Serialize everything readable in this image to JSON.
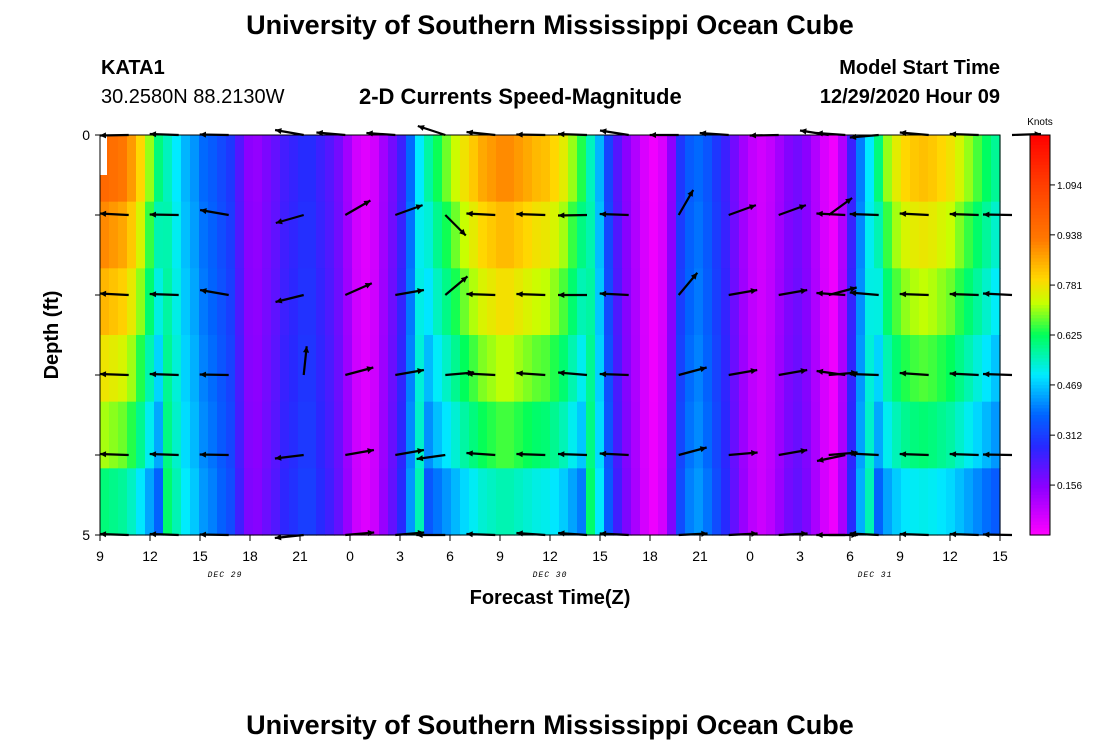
{
  "header": {
    "title_top": "University of Southern Mississippi Ocean Cube",
    "station_id": "KATA1",
    "station_coords": "30.2580N 88.2130W",
    "product_title": "2-D Currents Speed-Magnitude",
    "model_start_label": "Model Start Time",
    "model_start_value": "12/29/2020 Hour 09",
    "title_bottom": "University of Southern Mississippi Ocean Cube"
  },
  "chart_data": {
    "type": "heatmap",
    "title": "2-D Currents Speed-Magnitude",
    "xlabel": "Forecast Time(Z)",
    "ylabel": "Depth (ft)",
    "x_tick_labels": [
      "9",
      "12",
      "15",
      "18",
      "21",
      "0",
      "3",
      "6",
      "9",
      "12",
      "15",
      "18",
      "21",
      "0",
      "3",
      "6",
      "9",
      "12",
      "15"
    ],
    "x_range_hours": [
      0,
      54
    ],
    "date_labels": [
      {
        "text": "DEC 29",
        "hour": 7.5
      },
      {
        "text": "DEC 30",
        "hour": 27
      },
      {
        "text": "DEC 31",
        "hour": 46.5
      }
    ],
    "y_tick_labels": [
      "0",
      "5"
    ],
    "ylim_ft": [
      0,
      5
    ],
    "colorbar": {
      "unit": "Knots",
      "tick_labels": [
        "1.094",
        "0.938",
        "0.781",
        "0.625",
        "0.469",
        "0.312",
        "0.156"
      ],
      "tick_values": [
        1.094,
        0.938,
        0.781,
        0.625,
        0.469,
        0.312,
        0.156
      ],
      "vmin": 0.0,
      "vmax": 1.25
    },
    "speed_profile_knots": [
      0.97,
      0.95,
      0.93,
      0.88,
      0.8,
      0.7,
      0.6,
      0.55,
      0.5,
      0.45,
      0.42,
      0.38,
      0.36,
      0.33,
      0.3,
      0.22,
      0.15,
      0.14,
      0.17,
      0.2,
      0.24,
      0.26,
      0.28,
      0.28,
      0.25,
      0.22,
      0.18,
      0.12,
      0.06,
      0.04,
      0.06,
      0.12,
      0.18,
      0.25,
      0.38,
      0.5,
      0.57,
      0.63,
      0.68,
      0.73,
      0.78,
      0.82,
      0.86,
      0.88,
      0.9,
      0.9,
      0.88,
      0.86,
      0.84,
      0.83,
      0.8,
      0.76,
      0.7,
      0.64,
      0.55,
      0.45,
      0.32,
      0.22,
      0.15,
      0.1,
      0.05,
      0.02,
      0.05,
      0.15,
      0.3,
      0.36,
      0.38,
      0.35,
      0.3,
      0.25,
      0.18,
      0.12,
      0.08,
      0.06,
      0.08,
      0.12,
      0.16,
      0.18,
      0.15,
      0.1,
      0.05,
      0.02,
      0.1,
      0.25,
      0.4,
      0.5,
      0.6,
      0.7,
      0.76,
      0.8,
      0.82,
      0.83,
      0.82,
      0.8,
      0.78,
      0.74,
      0.7,
      0.66,
      0.62,
      0.58
    ],
    "depth_speed_factor": [
      1.0,
      0.93,
      0.87,
      0.8,
      0.73,
      0.62
    ],
    "vector_columns_hour": [
      1,
      4,
      7,
      11.5,
      14,
      17,
      20,
      23,
      26,
      28.5,
      31,
      34,
      37,
      40,
      43,
      44,
      46,
      49,
      52,
      54
    ],
    "vector_angles_deg": [
      [
        181,
        178,
        179,
        170,
        175,
        176,
        162,
        174,
        179,
        178,
        171,
        180,
        176,
        181,
        171,
        176,
        185,
        175,
        178,
        2
      ],
      [
        177,
        179,
        170,
        196,
        30,
        20,
        315,
        177,
        178,
        181,
        178,
        60,
        20,
        20,
        36,
        177,
        178,
        177,
        178,
        179
      ],
      [
        177,
        178,
        170,
        194,
        24,
        10,
        40,
        178,
        178,
        180,
        177,
        50,
        10,
        10,
        15,
        176,
        175,
        178,
        178,
        177
      ],
      [
        178,
        178,
        179,
        84,
        15,
        10,
        5,
        177,
        176,
        175,
        178,
        15,
        10,
        10,
        5,
        172,
        178,
        176,
        177,
        178
      ],
      [
        178,
        178,
        179,
        187,
        10,
        10,
        188,
        176,
        178,
        178,
        177,
        15,
        5,
        10,
        5,
        192,
        177,
        178,
        178,
        179
      ],
      [
        178,
        178,
        179,
        186,
        5,
        5,
        180,
        178,
        176,
        176,
        177,
        3,
        3,
        3,
        0,
        180,
        177,
        178,
        178,
        179
      ]
    ]
  }
}
